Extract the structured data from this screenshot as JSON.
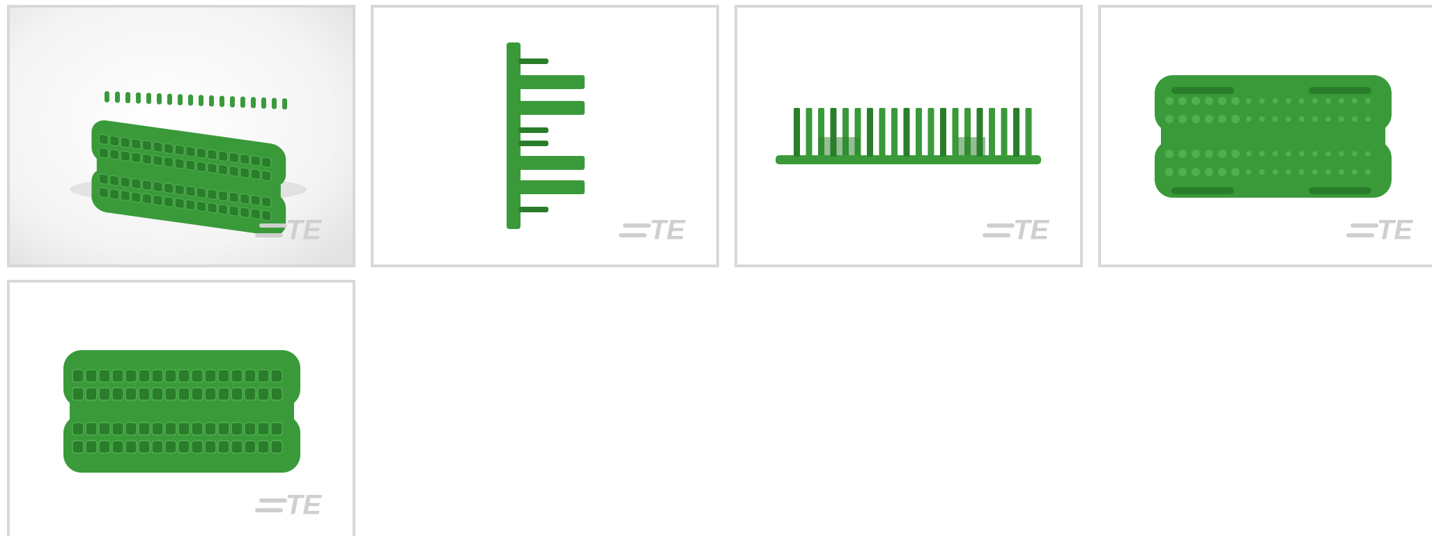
{
  "gallery": {
    "tiles": [
      {
        "view": "perspective",
        "logo": "TE"
      },
      {
        "view": "side",
        "logo": "TE"
      },
      {
        "view": "front",
        "logo": "TE"
      },
      {
        "view": "back",
        "logo": "TE"
      },
      {
        "view": "top",
        "logo": "TE"
      }
    ]
  }
}
